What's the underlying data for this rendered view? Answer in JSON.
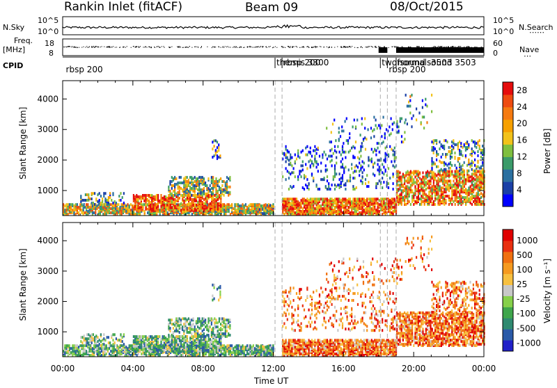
{
  "header": {
    "station": "Rankin Inlet (fitACF)",
    "beam": "Beam 09",
    "date": "08/Oct/2015"
  },
  "strip": {
    "nsky_label": "N.Sky",
    "nsearch_label": "N.Search",
    "nsky_ticks": [
      "10^5",
      "10^0"
    ],
    "freq_label_1": "Freq.",
    "freq_label_2": "[MHz]",
    "freq_ticks": [
      "18",
      "8"
    ],
    "nave_ticks": [
      "60",
      "0"
    ],
    "nave_label": "Nave",
    "cpid_label": "CPID",
    "cpid_entries": [
      {
        "label": "rbsp 200",
        "hour": 0.1
      },
      {
        "label": "themis 3300",
        "hour": 12.1
      },
      {
        "label": "rbsp 200",
        "hour": 12.5
      },
      {
        "label": "twofsound -3503",
        "hour": 18.1
      },
      {
        "label": "rbsp 200",
        "hour": 18.5
      },
      {
        "label": "normalsound 3503",
        "hour": 19.0
      }
    ]
  },
  "chart_data": [
    {
      "type": "heatmap",
      "name": "Power",
      "ylabel": "Slant Range [km]",
      "ylim": [
        180,
        4600
      ],
      "yticks": [
        1000,
        2000,
        3000,
        4000
      ],
      "xlim": [
        0,
        24
      ],
      "colorbar_label": "Power [dB]",
      "colorbar_ticks": [
        "4",
        "8",
        "12",
        "16",
        "20",
        "24",
        "28"
      ],
      "colors": [
        "#0000ff",
        "#1a3fa6",
        "#2b70a0",
        "#3b9b6a",
        "#7fbf3f",
        "#f2c21a",
        "#f6a000",
        "#f57a10",
        "#ee4b10",
        "#e50c0c"
      ]
    },
    {
      "type": "heatmap",
      "name": "Velocity",
      "ylabel": "Slant Range [km]",
      "ylim": [
        180,
        4600
      ],
      "yticks": [
        1000,
        2000,
        3000,
        4000
      ],
      "xlim": [
        0,
        24
      ],
      "xlabel": "Time UT",
      "xticks": [
        "00:00",
        "04:00",
        "08:00",
        "12:00",
        "16:00",
        "20:00",
        "00:00"
      ],
      "colorbar_label": "Velocity [m s⁻¹]",
      "colorbar_ticks": [
        "1000",
        "500",
        "100",
        "25",
        "-25",
        "-100",
        "-500",
        "-1000"
      ],
      "colors": [
        "#2020c8",
        "#2a5aa8",
        "#2f8a70",
        "#3fa64c",
        "#86d04a",
        "#c8c8c8",
        "#f7c040",
        "#f59a20",
        "#f07010",
        "#e93010",
        "#e00000"
      ]
    }
  ]
}
